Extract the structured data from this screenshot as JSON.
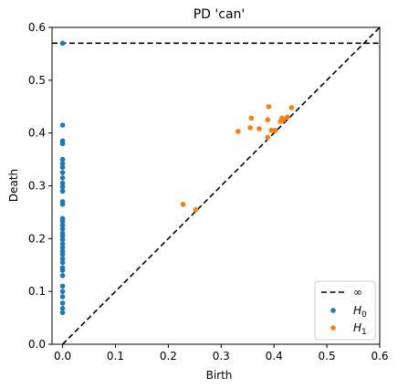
{
  "chart_data": {
    "type": "scatter",
    "title": "PD 'can'",
    "xlabel": "Birth",
    "ylabel": "Death",
    "xlim": [
      -0.02,
      0.6
    ],
    "ylim": [
      0,
      0.6
    ],
    "xticks": [
      0.0,
      0.1,
      0.2,
      0.3,
      0.4,
      0.5,
      0.6
    ],
    "yticks": [
      0.0,
      0.1,
      0.2,
      0.3,
      0.4,
      0.5,
      0.6
    ],
    "tick_labels": {
      "x": [
        "0.0",
        "0.1",
        "0.2",
        "0.3",
        "0.4",
        "0.5",
        "0.6"
      ],
      "y": [
        "0.0",
        "0.1",
        "0.2",
        "0.3",
        "0.4",
        "0.5",
        "0.6"
      ]
    },
    "grid": false,
    "legend_position": "lower-right",
    "infinity_death": 0.57,
    "legend": {
      "infinity_label": "∞",
      "h0_main": "H",
      "h0_sub": "0",
      "h1_main": "H",
      "h1_sub": "1"
    },
    "colors": {
      "H0": "#1f77b4",
      "H1": "#ff7f0e",
      "lines": "#000000"
    },
    "series": [
      {
        "name": "H0",
        "points": [
          [
            0.0,
            0.57
          ],
          [
            0.0,
            0.415
          ],
          [
            0.0,
            0.385
          ],
          [
            0.0,
            0.38
          ],
          [
            0.0,
            0.35
          ],
          [
            0.0,
            0.342
          ],
          [
            0.0,
            0.335
          ],
          [
            0.0,
            0.325
          ],
          [
            0.0,
            0.315
          ],
          [
            0.0,
            0.305
          ],
          [
            0.0,
            0.298
          ],
          [
            0.0,
            0.29
          ],
          [
            0.0,
            0.27
          ],
          [
            0.0,
            0.265
          ],
          [
            0.0,
            0.238
          ],
          [
            0.0,
            0.232
          ],
          [
            0.0,
            0.225
          ],
          [
            0.0,
            0.218
          ],
          [
            0.0,
            0.21
          ],
          [
            0.0,
            0.205
          ],
          [
            0.0,
            0.198
          ],
          [
            0.0,
            0.19
          ],
          [
            0.0,
            0.183
          ],
          [
            0.0,
            0.176
          ],
          [
            0.0,
            0.17
          ],
          [
            0.0,
            0.162
          ],
          [
            0.0,
            0.155
          ],
          [
            0.0,
            0.145
          ],
          [
            0.0,
            0.14
          ],
          [
            0.0,
            0.13
          ],
          [
            0.0,
            0.11
          ],
          [
            0.0,
            0.1
          ],
          [
            0.0,
            0.09
          ],
          [
            0.0,
            0.078
          ],
          [
            0.0,
            0.068
          ],
          [
            0.0,
            0.06
          ]
        ]
      },
      {
        "name": "H1",
        "points": [
          [
            0.228,
            0.265
          ],
          [
            0.252,
            0.255
          ],
          [
            0.332,
            0.403
          ],
          [
            0.355,
            0.41
          ],
          [
            0.357,
            0.428
          ],
          [
            0.372,
            0.408
          ],
          [
            0.388,
            0.425
          ],
          [
            0.39,
            0.45
          ],
          [
            0.388,
            0.392
          ],
          [
            0.395,
            0.405
          ],
          [
            0.402,
            0.405
          ],
          [
            0.412,
            0.422
          ],
          [
            0.415,
            0.428
          ],
          [
            0.418,
            0.425
          ],
          [
            0.425,
            0.43
          ],
          [
            0.433,
            0.448
          ]
        ]
      }
    ]
  }
}
